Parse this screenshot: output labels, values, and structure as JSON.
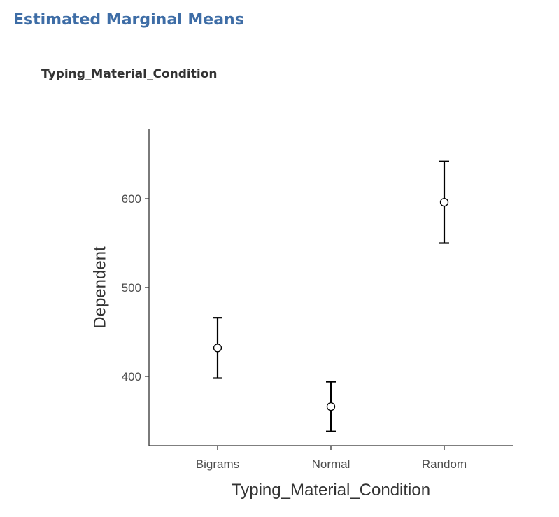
{
  "header": {
    "title": "Estimated Marginal Means",
    "subtitle": "Typing_Material_Condition"
  },
  "colors": {
    "title": "#3e6da6",
    "axis": "#333333",
    "marker_fill": "#ffffff",
    "error_bar": "#000000"
  },
  "chart_data": {
    "type": "scatter",
    "categories": [
      "Bigrams",
      "Normal",
      "Random"
    ],
    "values": [
      432,
      366,
      596
    ],
    "ci_lower": [
      398,
      338,
      550
    ],
    "ci_upper": [
      466,
      394,
      642
    ],
    "xlabel": "Typing_Material_Condition",
    "ylabel": "Dependent",
    "ylim": [
      322,
      678
    ],
    "yticks": [
      400,
      500,
      600
    ],
    "grid": false,
    "marker": "open-circle",
    "error_bars": true
  }
}
